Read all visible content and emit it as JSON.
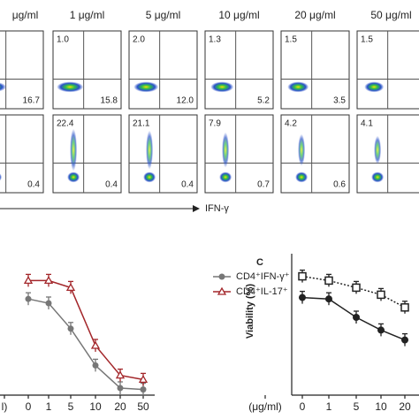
{
  "flow": {
    "headers": [
      "μg/ml",
      "1 μg/ml",
      "5 μg/ml",
      "10 μg/ml",
      "20 μg/ml",
      "50 μg/ml"
    ],
    "rows": [
      {
        "upper_left": [
          null,
          "1.0",
          "2.0",
          "1.3",
          "1.5",
          "1.5"
        ],
        "lower_right": [
          "16.7",
          "15.8",
          "12.0",
          "5.2",
          "3.5",
          null
        ]
      },
      {
        "upper_left": [
          null,
          "22.4",
          "21.1",
          "7.9",
          "4.2",
          "4.1"
        ],
        "lower_right": [
          "0.4",
          "0.4",
          "0.4",
          "0.7",
          "0.6",
          null
        ]
      }
    ],
    "x_axis_label": "IFN-γ"
  },
  "chart_data": [
    {
      "type": "line",
      "categories": [
        "l)",
        "0",
        "1",
        "5",
        "10",
        "20",
        "50"
      ],
      "ylim": [
        0,
        100
      ],
      "series": [
        {
          "name": "CD4⁺IFN-γ⁺",
          "color": "#777777",
          "marker": "circle",
          "dash": false,
          "values": [
            null,
            68,
            65,
            47,
            21,
            5,
            4
          ]
        },
        {
          "name": "CD4⁺IL-17⁺",
          "color": "#a3262a",
          "marker": "triangle",
          "dash": false,
          "values": [
            null,
            81,
            81,
            76,
            35,
            14,
            11
          ]
        }
      ]
    },
    {
      "type": "line",
      "panel_label": "C",
      "y_label": "Viability (%)",
      "categories": [
        "(μg/ml)",
        "0",
        "1",
        "5",
        "10",
        "20"
      ],
      "ylim": [
        0,
        100
      ],
      "series": [
        {
          "color": "#222222",
          "marker": "square",
          "dash": true,
          "values": [
            null,
            84,
            81,
            76,
            71,
            62
          ]
        },
        {
          "color": "#222222",
          "marker": "dot",
          "dash": false,
          "values": [
            null,
            69,
            68,
            55,
            46,
            39
          ]
        }
      ]
    }
  ]
}
